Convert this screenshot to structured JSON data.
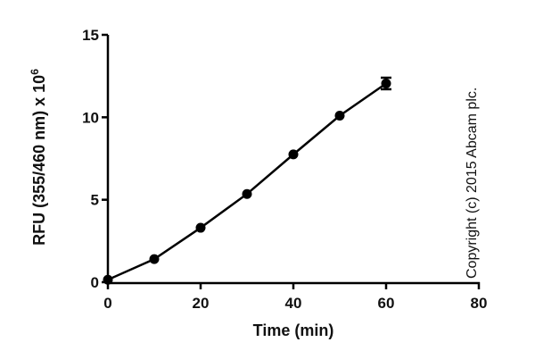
{
  "chart_data": {
    "type": "line",
    "title": "",
    "xlabel": "Time (min)",
    "ylabel": "RFU (355/460 nm) x 10",
    "ylabel_superscript": "6",
    "xlim": [
      0,
      80
    ],
    "ylim": [
      0,
      15
    ],
    "x_ticks": [
      0,
      20,
      40,
      60,
      80
    ],
    "y_ticks": [
      0,
      5,
      10,
      15
    ],
    "grid": false,
    "legend": null,
    "series": [
      {
        "name": "RFU",
        "marker": "filled-circle",
        "color": "#000000",
        "x": [
          0,
          10,
          20,
          30,
          40,
          50,
          60
        ],
        "y": [
          0.15,
          1.4,
          3.3,
          5.35,
          7.75,
          10.1,
          12.05
        ],
        "error": [
          0,
          0,
          0,
          0,
          0,
          0,
          0.35
        ]
      }
    ],
    "annotations": [
      "Copyright (c) 2015 Abcam plc."
    ]
  },
  "labels": {
    "copyright": "Copyright (c) 2015 Abcam plc."
  }
}
